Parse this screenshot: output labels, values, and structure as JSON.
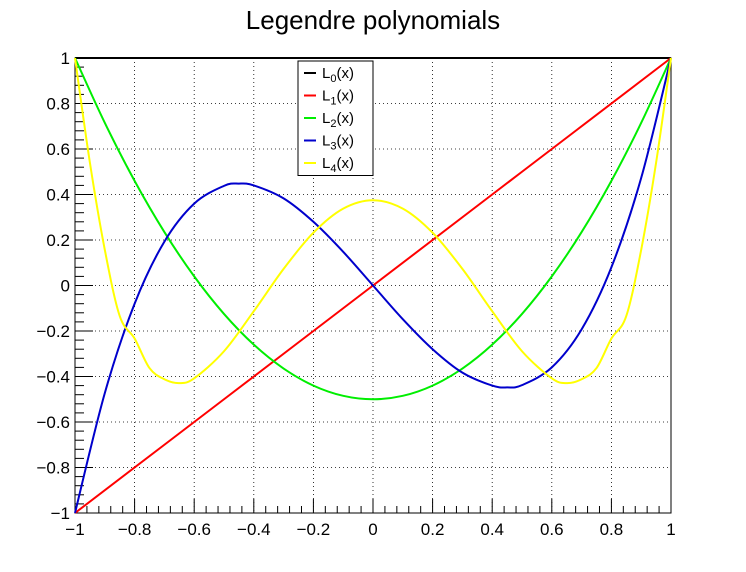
{
  "chart_data": {
    "type": "line",
    "title": "Legendre polynomials",
    "xlabel": "",
    "ylabel": "",
    "xlim": [
      -1,
      1
    ],
    "ylim": [
      -1,
      1
    ],
    "x_ticks": [
      -1,
      -0.8,
      -0.6,
      -0.4,
      -0.2,
      0,
      0.2,
      0.4,
      0.6,
      0.8,
      1
    ],
    "x_tick_labels": [
      "−1",
      "−0.8",
      "−0.6",
      "−0.4",
      "−0.2",
      "0",
      "0.2",
      "0.4",
      "0.6",
      "0.8",
      "1"
    ],
    "y_ticks": [
      -1,
      -0.8,
      -0.6,
      -0.4,
      -0.2,
      0,
      0.2,
      0.4,
      0.6,
      0.8,
      1
    ],
    "y_tick_labels": [
      "−1",
      "−0.8",
      "−0.6",
      "−0.4",
      "−0.2",
      "0",
      "0.2",
      "0.4",
      "0.6",
      "0.8",
      "1"
    ],
    "grid": true,
    "grid_style": "dotted",
    "legend_position": "top-center",
    "series": [
      {
        "name": "L_0(x)",
        "label_base": "L",
        "label_sub": "0",
        "label_suffix": "(x)",
        "color": "#000000",
        "x": [
          -1,
          1
        ],
        "y": [
          1,
          1
        ]
      },
      {
        "name": "L_1(x)",
        "label_base": "L",
        "label_sub": "1",
        "label_suffix": "(x)",
        "color": "#ff0000",
        "x": [
          -1,
          -0.5,
          0,
          0.5,
          1
        ],
        "y": [
          -1,
          -0.5,
          0,
          0.5,
          1
        ]
      },
      {
        "name": "L_2(x)",
        "label_base": "L",
        "label_sub": "2",
        "label_suffix": "(x)",
        "color": "#00ee00",
        "x": [
          -1,
          -0.9,
          -0.8,
          -0.7,
          -0.6,
          -0.5,
          -0.4,
          -0.3,
          -0.2,
          -0.1,
          0,
          0.1,
          0.2,
          0.3,
          0.4,
          0.5,
          0.6,
          0.7,
          0.8,
          0.9,
          1
        ],
        "y": [
          1,
          0.715,
          0.46,
          0.235,
          0.04,
          -0.125,
          -0.26,
          -0.365,
          -0.44,
          -0.485,
          -0.5,
          -0.485,
          -0.44,
          -0.365,
          -0.26,
          -0.125,
          0.04,
          0.235,
          0.46,
          0.715,
          1
        ]
      },
      {
        "name": "L_3(x)",
        "label_base": "L",
        "label_sub": "3",
        "label_suffix": "(x)",
        "color": "#0000cc",
        "x": [
          -1,
          -0.9,
          -0.8,
          -0.7,
          -0.6,
          -0.5,
          -0.45,
          -0.4,
          -0.3,
          -0.2,
          -0.1,
          0,
          0.1,
          0.2,
          0.3,
          0.4,
          0.45,
          0.5,
          0.6,
          0.7,
          0.8,
          0.9,
          1
        ],
        "y": [
          -1,
          -0.473,
          -0.08,
          0.193,
          0.36,
          0.438,
          0.448,
          0.44,
          0.383,
          0.28,
          0.148,
          0,
          -0.148,
          -0.28,
          -0.383,
          -0.44,
          -0.448,
          -0.438,
          -0.36,
          -0.193,
          0.08,
          0.473,
          1
        ]
      },
      {
        "name": "L_4(x)",
        "label_base": "L",
        "label_sub": "4",
        "label_suffix": "(x)",
        "color": "#ffff00",
        "x": [
          -1,
          -0.95,
          -0.9,
          -0.85,
          -0.8,
          -0.75,
          -0.7,
          -0.65,
          -0.6,
          -0.5,
          -0.4,
          -0.3,
          -0.2,
          -0.1,
          0,
          0.1,
          0.2,
          0.3,
          0.4,
          0.5,
          0.6,
          0.65,
          0.7,
          0.75,
          0.8,
          0.85,
          0.9,
          0.95,
          1
        ],
        "y": [
          1,
          0.54,
          0.157,
          -0.134,
          -0.233,
          -0.363,
          -0.412,
          -0.429,
          -0.408,
          -0.289,
          -0.113,
          0.073,
          0.232,
          0.338,
          0.375,
          0.338,
          0.232,
          0.073,
          -0.113,
          -0.289,
          -0.408,
          -0.429,
          -0.412,
          -0.363,
          -0.233,
          -0.134,
          0.157,
          0.54,
          1
        ]
      }
    ]
  }
}
